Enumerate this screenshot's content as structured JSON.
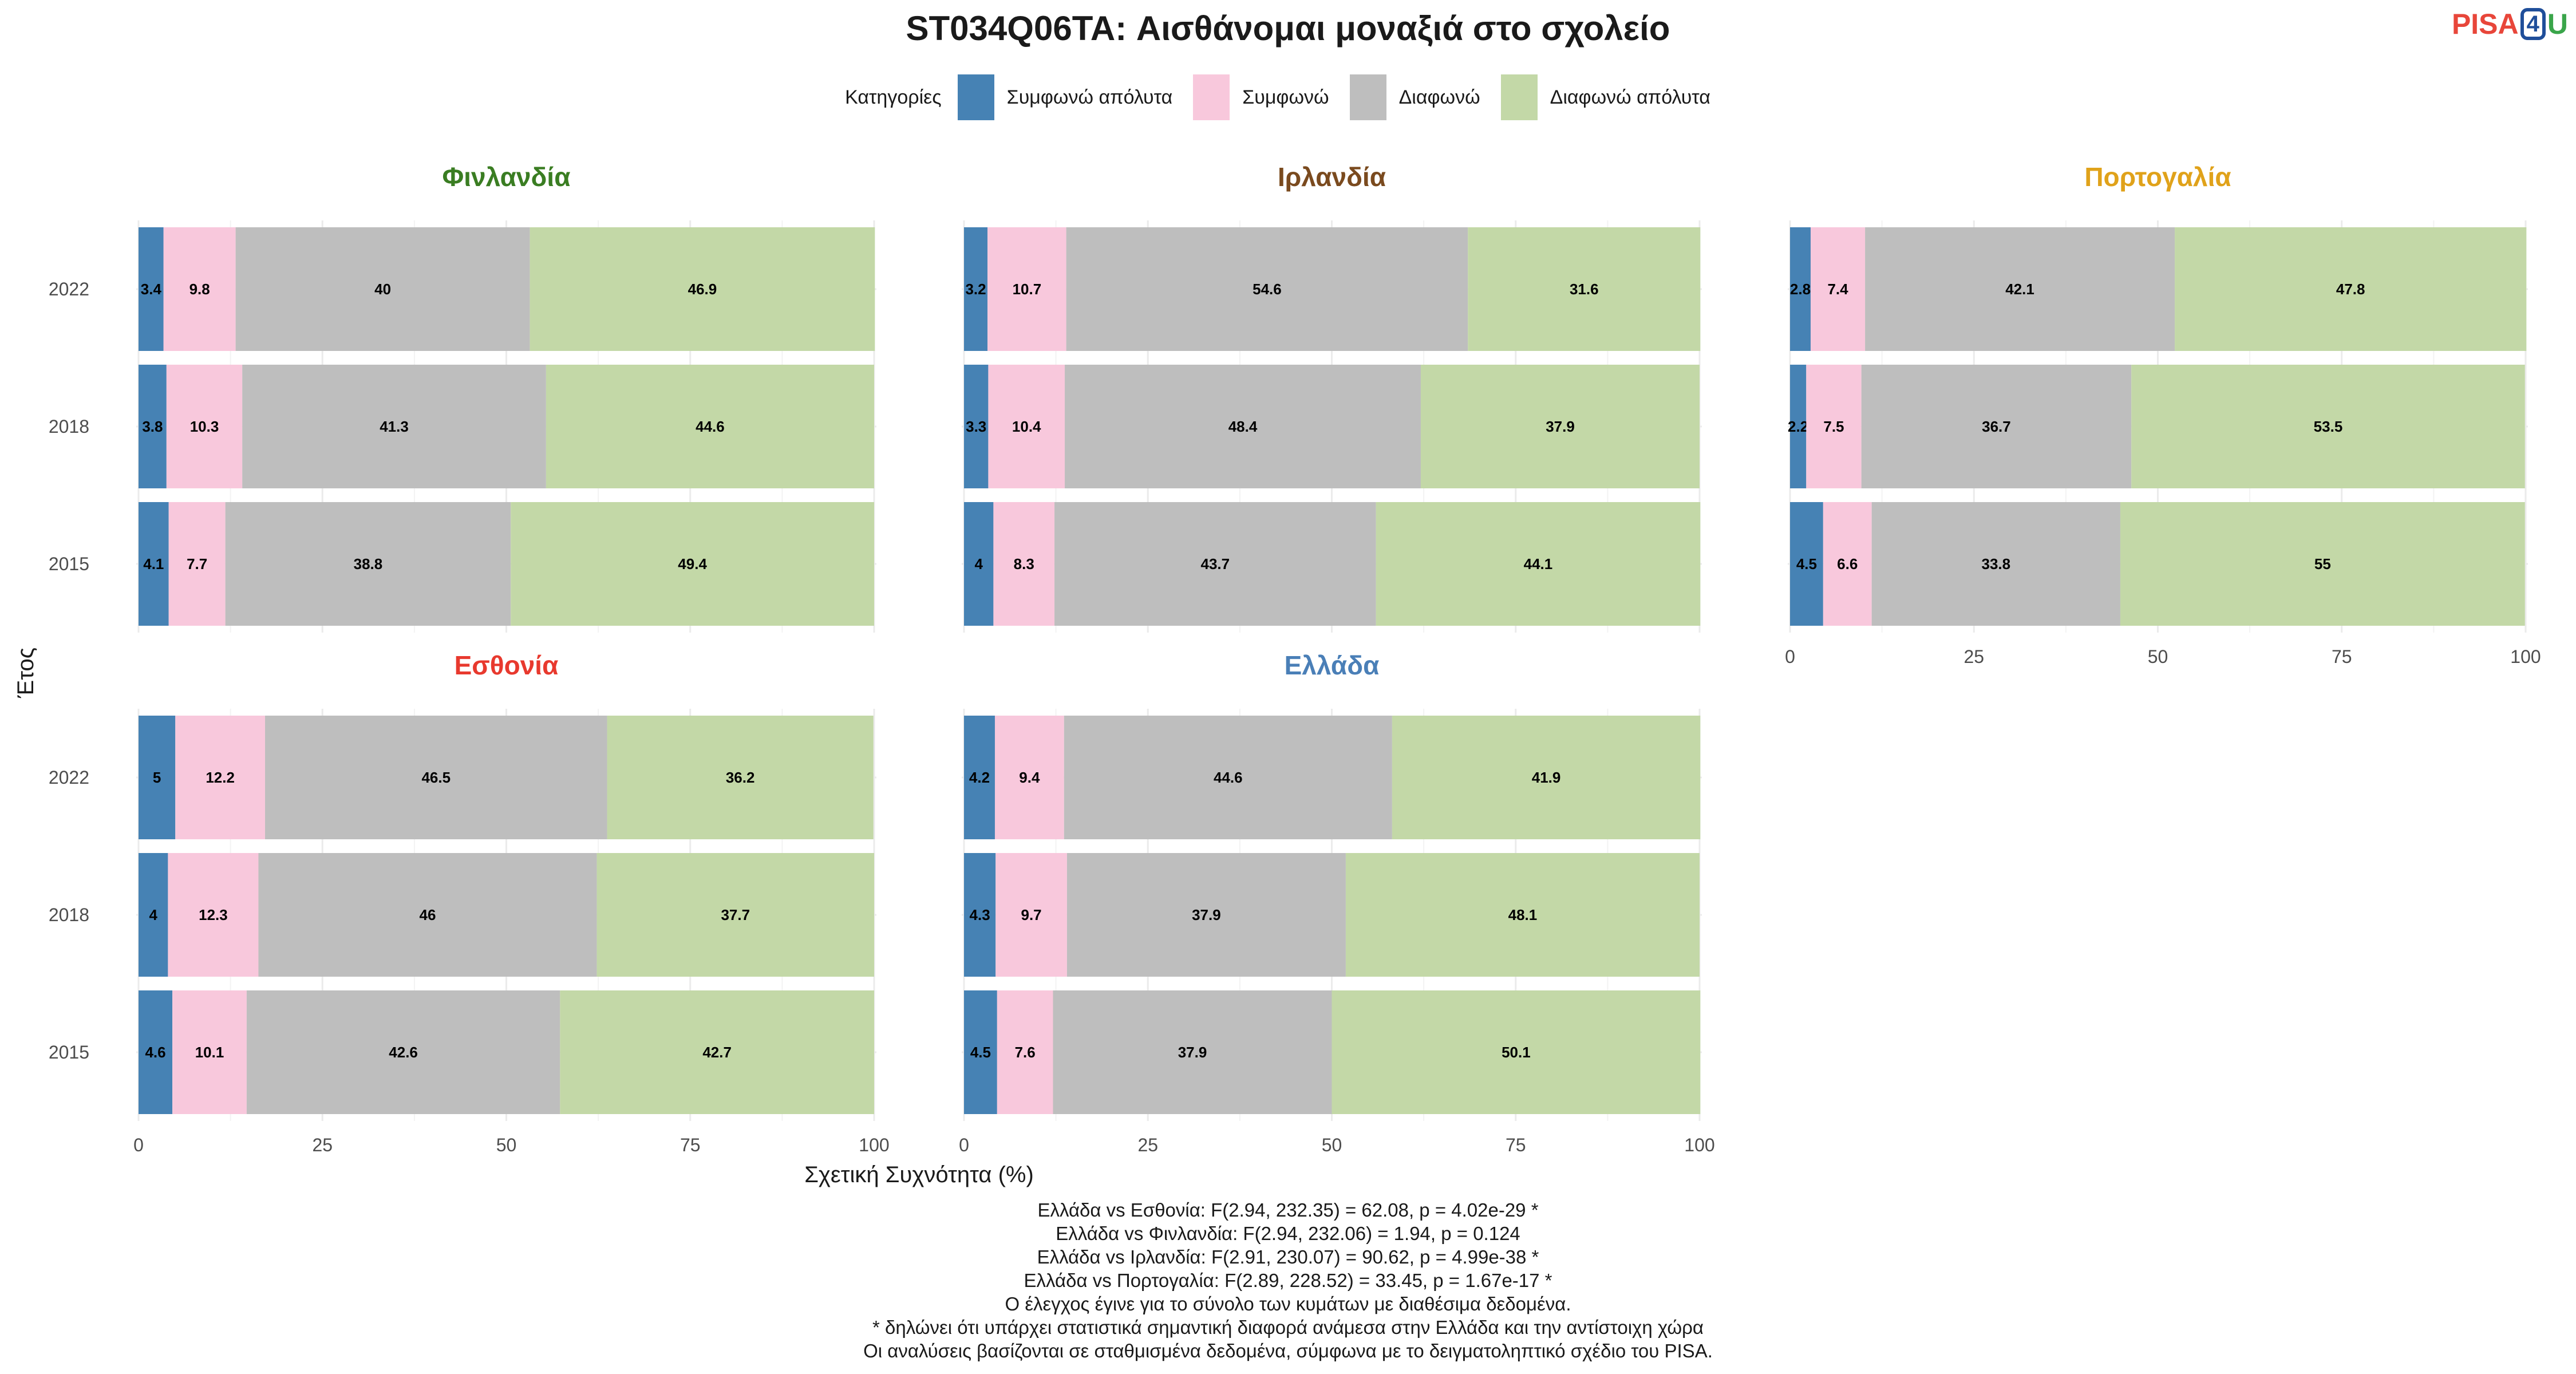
{
  "title": "ST034Q06TA: Αισθάνομαι μοναξιά στο σχολείο",
  "logo": {
    "part1": "PISA",
    "part2": "4",
    "part3": "U"
  },
  "legend": {
    "title": "Κατηγορίες",
    "items": [
      {
        "label": "Συμφωνώ απόλυτα",
        "color": "#4682b4"
      },
      {
        "label": "Συμφωνώ",
        "color": "#f8c8dc"
      },
      {
        "label": "Διαφωνώ",
        "color": "#bebebe"
      },
      {
        "label": "Διαφωνώ απόλυτα",
        "color": "#c3d8a7"
      }
    ]
  },
  "chart_data": {
    "type": "bar",
    "orientation": "horizontal",
    "stacked": true,
    "xlabel": "Σχετική Συχνότητα (%)",
    "ylabel": "Έτος",
    "xlim": [
      0,
      100
    ],
    "xticks": [
      0,
      25,
      50,
      75,
      100
    ],
    "categories": [
      "2022",
      "2018",
      "2015"
    ],
    "series_names": [
      "Συμφωνώ απόλυτα",
      "Συμφωνώ",
      "Διαφωνώ",
      "Διαφωνώ απόλυτα"
    ],
    "panels": [
      {
        "title": "Φινλανδία",
        "title_color": "#3a7d22",
        "values": {
          "2022": [
            3.4,
            9.8,
            40,
            46.9
          ],
          "2018": [
            3.8,
            10.3,
            41.3,
            44.6
          ],
          "2015": [
            4.1,
            7.7,
            38.8,
            49.4
          ]
        }
      },
      {
        "title": "Ιρλανδία",
        "title_color": "#7a4a1e",
        "values": {
          "2022": [
            3.2,
            10.7,
            54.6,
            31.6
          ],
          "2018": [
            3.3,
            10.4,
            48.4,
            37.9
          ],
          "2015": [
            4,
            8.3,
            43.7,
            44.1
          ]
        }
      },
      {
        "title": "Πορτογαλία",
        "title_color": "#e0a21a",
        "values": {
          "2022": [
            2.8,
            7.4,
            42.1,
            47.8
          ],
          "2018": [
            2.2,
            7.5,
            36.7,
            53.5
          ],
          "2015": [
            4.5,
            6.6,
            33.8,
            55
          ]
        }
      },
      {
        "title": "Εσθονία",
        "title_color": "#e8392e",
        "values": {
          "2022": [
            5,
            12.2,
            46.5,
            36.2
          ],
          "2018": [
            4,
            12.3,
            46,
            37.7
          ],
          "2015": [
            4.6,
            10.1,
            42.6,
            42.7
          ]
        }
      },
      {
        "title": "Ελλάδα",
        "title_color": "#4a7fb7",
        "values": {
          "2022": [
            4.2,
            9.4,
            44.6,
            41.9
          ],
          "2018": [
            4.3,
            9.7,
            37.9,
            48.1
          ],
          "2015": [
            4.5,
            7.6,
            37.9,
            50.1
          ]
        }
      }
    ],
    "grid": true
  },
  "notes": [
    "Ελλάδα vs Εσθονία: F(2.94, 232.35) = 62.08, p = 4.02e-29 *",
    "Ελλάδα vs Φινλανδία: F(2.94, 232.06) = 1.94, p = 0.124",
    "Ελλάδα vs Ιρλανδία: F(2.91, 230.07) = 90.62, p = 4.99e-38 *",
    "Ελλάδα vs Πορτογαλία: F(2.89, 228.52) = 33.45, p = 1.67e-17 *",
    "Ο έλεγχος έγινε για το σύνολο των κυμάτων με διαθέσιμα δεδομένα.",
    "* δηλώνει ότι υπάρχει στατιστικά σημαντική διαφορά ανάμεσα στην Ελλάδα και την αντίστοιχη χώρα",
    "Οι αναλύσεις βασίζονται σε σταθμισμένα δεδομένα, σύμφωνα με το δειγματοληπτικό σχέδιο του PISA."
  ]
}
